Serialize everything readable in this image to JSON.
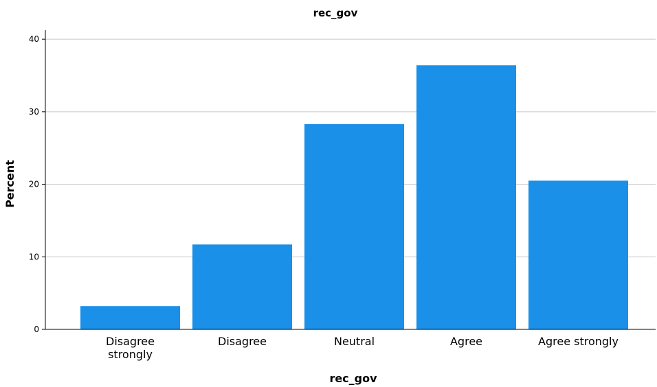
{
  "chart_data": {
    "type": "bar",
    "title": "rec_gov",
    "xlabel": "rec_gov",
    "ylabel": "Percent",
    "categories": [
      "Disagree strongly",
      "Disagree",
      "Neutral",
      "Agree",
      "Agree strongly"
    ],
    "category_lines": [
      [
        "Disagree",
        "strongly"
      ],
      [
        "Disagree"
      ],
      [
        "Neutral"
      ],
      [
        "Agree"
      ],
      [
        "Agree strongly"
      ]
    ],
    "values": [
      3.2,
      11.7,
      28.3,
      36.4,
      20.5
    ],
    "ylim": [
      0,
      42
    ],
    "yticks": [
      0,
      10,
      20,
      30,
      40
    ],
    "grid": true,
    "bar_color": "#1a90e8",
    "grid_color": "#c8c8c8"
  }
}
